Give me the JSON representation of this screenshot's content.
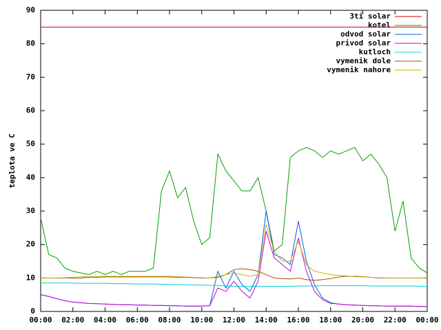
{
  "chart_data": {
    "type": "line",
    "ylabel": "teplota ve C",
    "x": [
      0,
      0.5,
      1,
      1.5,
      2,
      2.5,
      3,
      3.5,
      4,
      4.5,
      5,
      5.5,
      6,
      6.5,
      7,
      7.5,
      8,
      8.5,
      9,
      9.5,
      10,
      10.5,
      11,
      11.5,
      12,
      12.5,
      13,
      13.5,
      14,
      14.5,
      15,
      15.5,
      16,
      16.5,
      17,
      17.5,
      18,
      18.5,
      19,
      19.5,
      20,
      20.5,
      21,
      21.5,
      22,
      22.5,
      23,
      23.5,
      24
    ],
    "xlim": [
      0,
      24
    ],
    "xticks": [
      {
        "value": 0,
        "label": "00:00"
      },
      {
        "value": 2,
        "label": "02:00"
      },
      {
        "value": 4,
        "label": "04:00"
      },
      {
        "value": 6,
        "label": "06:00"
      },
      {
        "value": 8,
        "label": "08:00"
      },
      {
        "value": 10,
        "label": "10:00"
      },
      {
        "value": 12,
        "label": "12:00"
      },
      {
        "value": 14,
        "label": "14:00"
      },
      {
        "value": 16,
        "label": "16:00"
      },
      {
        "value": 18,
        "label": "18:00"
      },
      {
        "value": 20,
        "label": "20:00"
      },
      {
        "value": 22,
        "label": "22:00"
      },
      {
        "value": 24,
        "label": "00:00"
      }
    ],
    "ylim": [
      0,
      90
    ],
    "yticks": [
      0,
      10,
      20,
      30,
      40,
      50,
      60,
      70,
      80,
      90
    ],
    "legend": "top-right",
    "series": [
      {
        "name": "3ti solar",
        "color": "#d00000",
        "values": [
          85,
          85,
          85,
          85,
          85,
          85,
          85,
          85,
          85,
          85,
          85,
          85,
          85,
          85,
          85,
          85,
          85,
          85,
          85,
          85,
          85,
          85,
          85,
          85,
          85,
          85,
          85,
          85,
          85,
          85,
          85,
          85,
          85,
          85,
          85,
          85,
          85,
          85,
          85,
          85,
          85,
          85,
          85,
          85,
          85,
          85,
          85,
          85,
          85
        ]
      },
      {
        "name": "kotel",
        "color": "#00a000",
        "values": [
          28,
          17,
          16,
          13,
          12,
          11.5,
          11,
          12,
          11,
          12,
          11,
          12,
          12,
          12,
          13,
          36,
          42,
          34,
          37,
          27,
          20,
          22,
          47,
          42,
          39,
          36,
          36,
          40,
          30,
          18,
          20,
          46,
          48,
          49,
          48,
          46,
          48,
          47,
          48,
          49,
          45,
          47,
          44,
          40,
          24,
          33,
          16,
          13,
          11.5
        ]
      },
      {
        "name": "odvod solar",
        "color": "#0060e0",
        "values": [
          5,
          4.5,
          3.8,
          3.2,
          2.8,
          2.6,
          2.4,
          2.3,
          2.2,
          2.1,
          2,
          2,
          1.9,
          1.9,
          1.8,
          1.8,
          1.7,
          1.7,
          1.6,
          1.6,
          1.6,
          1.7,
          12,
          7,
          12,
          8,
          6,
          11,
          30,
          17,
          16,
          14,
          27,
          15,
          8,
          4,
          2.6,
          2.2,
          2,
          1.9,
          1.8,
          1.7,
          1.7,
          1.6,
          1.6,
          1.6,
          1.6,
          1.5,
          1.5
        ]
      },
      {
        "name": "privod solar",
        "color": "#c000d0",
        "values": [
          5,
          4.5,
          3.8,
          3.2,
          2.8,
          2.6,
          2.4,
          2.3,
          2.2,
          2.1,
          2,
          2,
          1.9,
          1.9,
          1.8,
          1.8,
          1.7,
          1.7,
          1.6,
          1.6,
          1.6,
          1.7,
          7,
          6,
          9,
          6,
          4,
          9,
          24,
          16,
          14,
          12,
          22,
          12,
          6,
          3.5,
          2.4,
          2.2,
          2,
          1.9,
          1.8,
          1.7,
          1.7,
          1.6,
          1.6,
          1.6,
          1.6,
          1.5,
          1.5
        ]
      },
      {
        "name": "kutloch",
        "color": "#00d0d0",
        "values": [
          8.5,
          8.5,
          8.5,
          8.5,
          8.5,
          8.4,
          8.4,
          8.4,
          8.4,
          8.3,
          8.3,
          8.3,
          8.2,
          8.2,
          8.2,
          8.1,
          8.1,
          8.0,
          8.0,
          7.9,
          7.9,
          7.8,
          7.7,
          7.6,
          7.5,
          7.5,
          7.5,
          7.5,
          7.5,
          7.5,
          7.5,
          7.5,
          7.6,
          7.6,
          7.6,
          7.7,
          7.7,
          7.7,
          7.7,
          7.7,
          7.7,
          7.6,
          7.6,
          7.6,
          7.6,
          7.6,
          7.6,
          7.5,
          7.5
        ]
      },
      {
        "name": "vymenik dole",
        "color": "#a05000",
        "values": [
          10,
          10,
          10,
          10,
          10,
          10,
          10.2,
          10.2,
          10.3,
          10.3,
          10.3,
          10.3,
          10.3,
          10.3,
          10.3,
          10.3,
          10.3,
          10.2,
          10.2,
          10.1,
          10,
          10,
          10.2,
          11,
          12.5,
          12.8,
          12.5,
          12,
          11,
          10,
          9.8,
          9.7,
          10,
          9.5,
          9.3,
          9.5,
          9.8,
          10.3,
          10.5,
          10.5,
          10.4,
          10.2,
          10,
          10,
          10,
          10,
          10,
          10,
          10
        ]
      },
      {
        "name": "vymenik nahore",
        "color": "#c8b400",
        "values": [
          10,
          10,
          10,
          10.1,
          10.2,
          10.3,
          10.4,
          10.5,
          10.5,
          10.5,
          10.5,
          10.5,
          10.5,
          10.5,
          10.5,
          10.5,
          10.5,
          10.4,
          10.3,
          10.2,
          10.1,
          10,
          10.5,
          11,
          11.5,
          11,
          10.5,
          11,
          26,
          18,
          15,
          15,
          21,
          14,
          12,
          11.5,
          11,
          10.8,
          10.6,
          10.4,
          10.3,
          10.2,
          10.1,
          10,
          10,
          10,
          10,
          10,
          10
        ]
      }
    ]
  }
}
